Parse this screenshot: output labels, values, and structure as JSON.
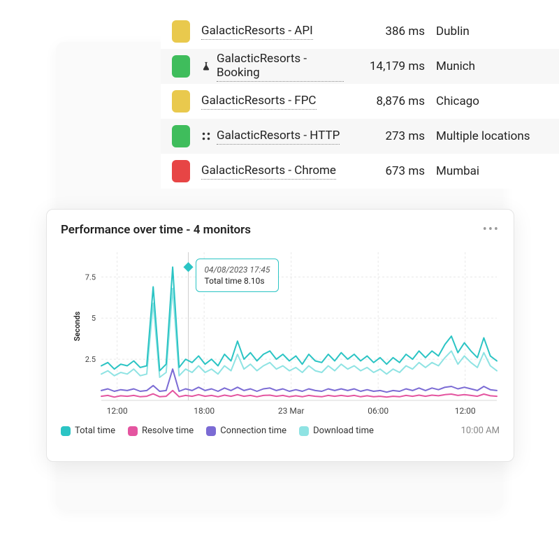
{
  "monitors": {
    "rows": [
      {
        "status_color": "#e9c94d",
        "icon": null,
        "name": "GalacticResorts - API",
        "time": "386 ms",
        "location": "Dublin",
        "alt": false
      },
      {
        "status_color": "#3fbd5c",
        "icon": "flask",
        "name": "GalacticResorts - Booking",
        "time": "14,179 ms",
        "location": "Munich",
        "alt": true
      },
      {
        "status_color": "#e9c94d",
        "icon": null,
        "name": "GalacticResorts - FPC",
        "time": "8,876 ms",
        "location": "Chicago",
        "alt": false
      },
      {
        "status_color": "#3fbd5c",
        "icon": "dots",
        "name": "GalacticResorts - HTTP",
        "time": "273 ms",
        "location": "Multiple locations",
        "alt": true
      },
      {
        "status_color": "#e74545",
        "icon": null,
        "name": "GalacticResorts - Chrome",
        "time": "673 ms",
        "location": "Mumbai",
        "alt": false
      }
    ]
  },
  "chart": {
    "title": "Performance over time - 4 monitors",
    "y_axis_label": "Seconds",
    "type": "line",
    "ylim": [
      0,
      9
    ],
    "yticks": [
      2.5,
      5,
      7.5
    ],
    "ytick_labels": [
      "2.5",
      "5",
      "7.5"
    ],
    "xtick_positions": [
      0.04,
      0.26,
      0.48,
      0.7,
      0.92
    ],
    "xtick_labels": [
      "12:00",
      "18:00",
      "23 Mar",
      "06:00",
      "12:00"
    ],
    "tooltip": {
      "x_position": 0.22,
      "date": "04/08/2023 17:45",
      "value_label": "Total time 8.10s",
      "marker_y": 8.1,
      "marker_color": "#2bc4c4",
      "border_color": "#2bc4c4"
    },
    "grid_color": "#e8e8e8",
    "axis_color": "#d8d8d8",
    "background_color": "#ffffff",
    "line_width": 2,
    "series": [
      {
        "name": "Total time",
        "color": "#2bc4c4",
        "y": [
          2.1,
          2.3,
          1.9,
          2.2,
          2.1,
          2.4,
          2.0,
          2.1,
          6.9,
          1.8,
          2.2,
          8.1,
          2.0,
          2.5,
          2.3,
          2.7,
          2.2,
          2.5,
          2.1,
          2.8,
          2.4,
          3.6,
          2.5,
          2.9,
          2.4,
          2.8,
          3.0,
          2.5,
          2.8,
          2.4,
          2.7,
          2.2,
          2.8,
          2.4,
          2.3,
          2.8,
          2.4,
          2.9,
          2.5,
          2.8,
          2.4,
          2.7,
          2.3,
          2.6,
          2.2,
          2.6,
          2.3,
          2.8,
          2.5,
          3.0,
          2.6,
          3.0,
          2.7,
          3.4,
          3.9,
          2.9,
          3.5,
          3.0,
          2.6,
          3.8,
          2.7,
          2.4
        ]
      },
      {
        "name": "Download time",
        "color": "#8fe3e3",
        "y": [
          1.6,
          1.8,
          1.5,
          1.7,
          1.6,
          1.9,
          1.5,
          1.6,
          5.9,
          1.4,
          1.7,
          6.8,
          1.5,
          1.9,
          1.7,
          2.1,
          1.7,
          1.9,
          1.6,
          2.1,
          1.8,
          2.8,
          1.9,
          2.2,
          1.8,
          2.1,
          2.3,
          1.9,
          2.1,
          1.8,
          2.0,
          1.7,
          2.1,
          1.8,
          1.7,
          2.1,
          1.8,
          2.2,
          1.9,
          2.1,
          1.8,
          2.0,
          1.7,
          1.9,
          1.6,
          1.9,
          1.7,
          2.1,
          1.9,
          2.3,
          2.0,
          2.3,
          2.1,
          2.6,
          3.0,
          2.2,
          2.7,
          2.3,
          2.0,
          2.9,
          2.1,
          1.8
        ]
      },
      {
        "name": "Connection time",
        "color": "#7b6bd4",
        "y": [
          0.6,
          0.7,
          0.55,
          0.65,
          0.6,
          0.7,
          0.55,
          0.6,
          0.9,
          0.55,
          0.6,
          1.9,
          0.55,
          0.7,
          0.6,
          0.8,
          0.6,
          0.7,
          0.55,
          0.75,
          0.6,
          0.8,
          0.6,
          0.7,
          0.55,
          0.7,
          0.75,
          0.6,
          0.7,
          0.55,
          0.65,
          0.55,
          0.7,
          0.6,
          0.55,
          0.7,
          0.6,
          0.7,
          0.6,
          0.7,
          0.55,
          0.65,
          0.55,
          0.6,
          0.5,
          0.6,
          0.55,
          0.7,
          0.6,
          0.75,
          0.6,
          0.75,
          0.65,
          0.8,
          0.85,
          0.7,
          0.8,
          0.7,
          0.6,
          0.85,
          0.65,
          0.6
        ]
      },
      {
        "name": "Resolve time",
        "color": "#e455a0",
        "y": [
          0.25,
          0.3,
          0.2,
          0.28,
          0.25,
          0.3,
          0.22,
          0.25,
          0.4,
          0.22,
          0.25,
          0.6,
          0.22,
          0.3,
          0.25,
          0.35,
          0.25,
          0.3,
          0.22,
          0.32,
          0.25,
          0.35,
          0.25,
          0.3,
          0.22,
          0.3,
          0.32,
          0.25,
          0.3,
          0.22,
          0.28,
          0.22,
          0.3,
          0.25,
          0.22,
          0.3,
          0.25,
          0.3,
          0.25,
          0.3,
          0.22,
          0.28,
          0.22,
          0.25,
          0.2,
          0.25,
          0.22,
          0.3,
          0.25,
          0.32,
          0.25,
          0.32,
          0.28,
          0.35,
          0.38,
          0.3,
          0.35,
          0.3,
          0.25,
          0.38,
          0.28,
          0.25
        ]
      }
    ],
    "legend": [
      {
        "label": "Total time",
        "color": "#2bc4c4"
      },
      {
        "label": "Resolve time",
        "color": "#e455a0"
      },
      {
        "label": "Connection time",
        "color": "#7b6bd4"
      },
      {
        "label": "Download time",
        "color": "#8fe3e3"
      }
    ],
    "timestamp": "10:00 AM"
  }
}
